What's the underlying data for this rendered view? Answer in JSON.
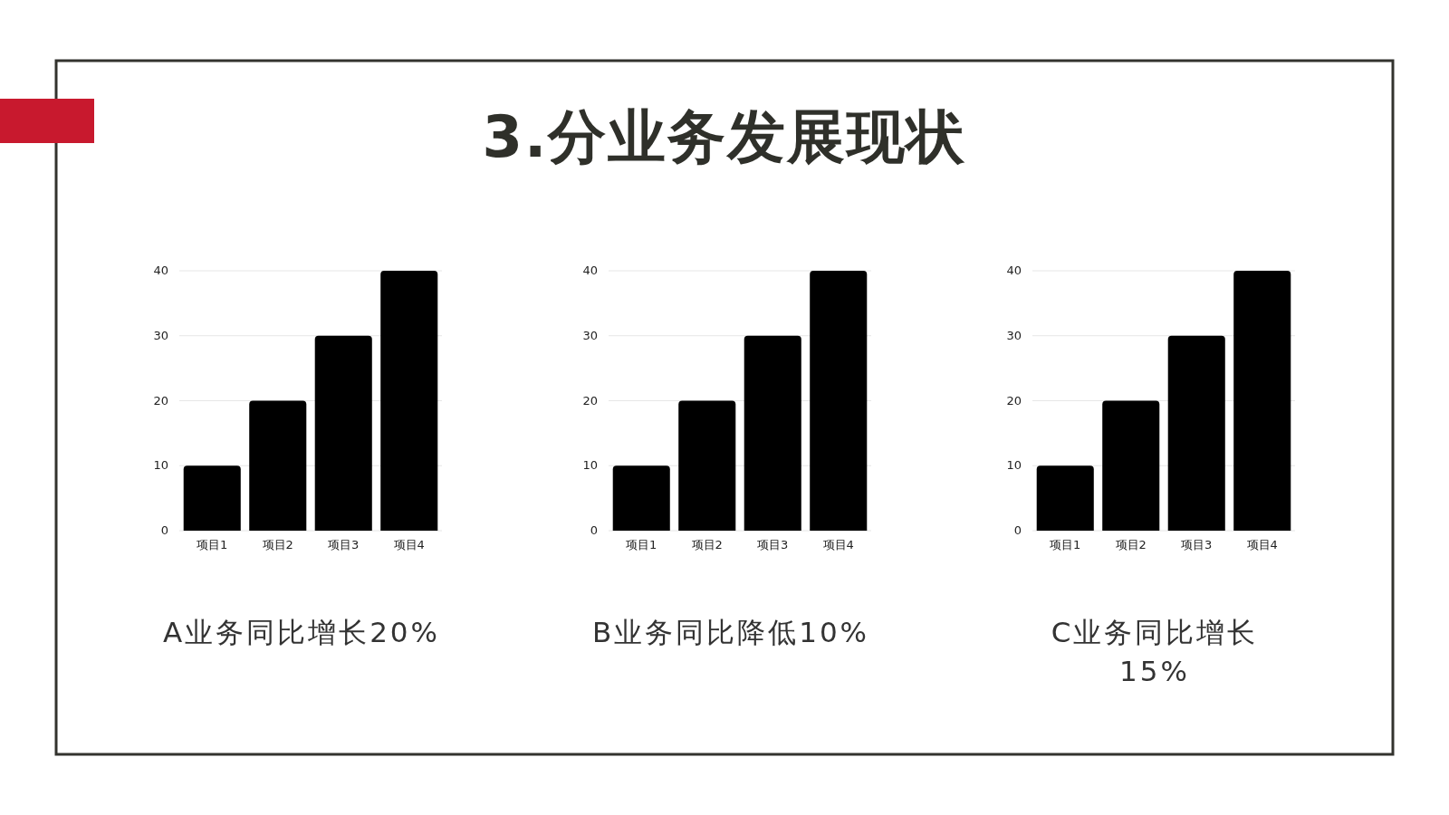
{
  "chart_data": [
    {
      "type": "bar",
      "categories": [
        "项目1",
        "项目2",
        "项目3",
        "项目4"
      ],
      "values": [
        10,
        20,
        30,
        40
      ],
      "color": "#000000",
      "ylim": [
        0,
        40
      ],
      "yticks": [
        0,
        10,
        20,
        30,
        40
      ],
      "grid": "y",
      "annotations": [
        "A业务同比增长20%"
      ]
    },
    {
      "type": "bar",
      "title": "3.分业务发展现状",
      "categories": [
        "项目1",
        "项目2",
        "项目3",
        "项目4"
      ],
      "values": [
        10,
        20,
        30,
        40
      ],
      "color": "#000000",
      "ylim": [
        0,
        40
      ],
      "yticks": [
        0,
        10,
        20,
        30,
        40
      ],
      "grid": "y",
      "annotations": [
        "B业务同比降低10%"
      ]
    },
    {
      "type": "bar",
      "categories": [
        "项目1",
        "项目2",
        "项目3",
        "项目4"
      ],
      "values": [
        10,
        20,
        30,
        40
      ],
      "color": "#000000",
      "ylim": [
        0,
        40
      ],
      "yticks": [
        0,
        10,
        20,
        30,
        40
      ],
      "grid": "y",
      "annotations": [
        "C业务同比增长15%"
      ]
    }
  ]
}
